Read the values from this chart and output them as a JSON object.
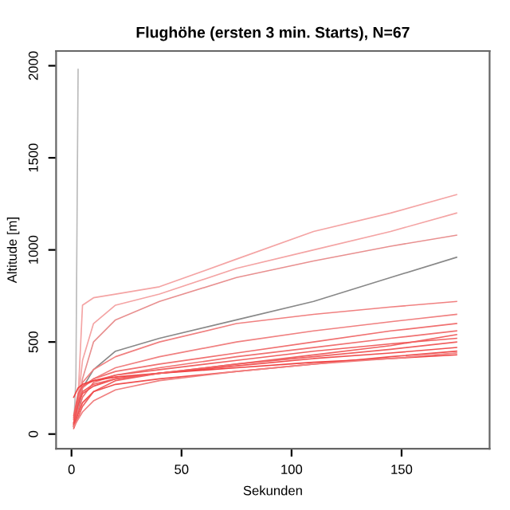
{
  "chart_data": {
    "type": "line",
    "title": "Flughöhe (ersten 3 min. Starts), N=67",
    "xlabel": "Sekunden",
    "ylabel": "Altitude [m]",
    "x": [
      1,
      3,
      5,
      10,
      20,
      40,
      75,
      110,
      145,
      175
    ],
    "xlim": [
      -7,
      190
    ],
    "ylim": [
      -80,
      2080
    ],
    "xticks": [
      0,
      50,
      100,
      150
    ],
    "yticks": [
      0,
      500,
      1000,
      1500,
      2000
    ],
    "grid": false,
    "legend": false,
    "line_style": "solid",
    "marker": "none",
    "series": [
      {
        "color": "#bbbbbb",
        "x": [
          1,
          2,
          3
        ],
        "values": [
          40,
          300,
          1980
        ]
      },
      {
        "color": "#f4a4a4",
        "values": [
          60,
          200,
          700,
          740,
          760,
          800,
          950,
          1100,
          1200,
          1300
        ]
      },
      {
        "color": "#f4a4a4",
        "values": [
          50,
          180,
          400,
          600,
          700,
          760,
          900,
          1000,
          1100,
          1200
        ]
      },
      {
        "color": "#e89090",
        "values": [
          50,
          150,
          300,
          500,
          620,
          720,
          850,
          940,
          1020,
          1080
        ]
      },
      {
        "color": "#888888",
        "values": [
          40,
          120,
          250,
          350,
          450,
          520,
          620,
          720,
          850,
          960
        ]
      },
      {
        "color": "#f08080",
        "values": [
          60,
          200,
          280,
          350,
          420,
          500,
          600,
          650,
          690,
          720
        ]
      },
      {
        "color": "#f08080",
        "values": [
          40,
          150,
          250,
          300,
          360,
          420,
          500,
          560,
          610,
          650
        ]
      },
      {
        "color": "#f07070",
        "values": [
          80,
          200,
          260,
          300,
          340,
          380,
          440,
          500,
          560,
          600
        ]
      },
      {
        "color": "#f07070",
        "values": [
          40,
          120,
          200,
          280,
          320,
          360,
          420,
          470,
          520,
          560
        ]
      },
      {
        "color": "#f06060",
        "values": [
          100,
          220,
          260,
          290,
          320,
          350,
          400,
          450,
          490,
          520
        ]
      },
      {
        "color": "#f06060",
        "values": [
          30,
          90,
          150,
          230,
          290,
          330,
          380,
          420,
          460,
          500
        ]
      },
      {
        "color": "#f05050",
        "values": [
          60,
          160,
          220,
          260,
          300,
          330,
          370,
          410,
          440,
          470
        ]
      },
      {
        "color": "#f05050",
        "values": [
          50,
          110,
          170,
          230,
          270,
          300,
          340,
          380,
          420,
          450
        ]
      },
      {
        "color": "#f04040",
        "values": [
          200,
          250,
          270,
          290,
          310,
          330,
          360,
          390,
          410,
          430
        ]
      },
      {
        "color": "#f08080",
        "values": [
          40,
          80,
          120,
          180,
          240,
          290,
          340,
          380,
          410,
          440
        ]
      },
      {
        "color": "#f06060",
        "values": [
          90,
          180,
          230,
          270,
          300,
          330,
          380,
          430,
          480,
          540
        ]
      }
    ]
  }
}
